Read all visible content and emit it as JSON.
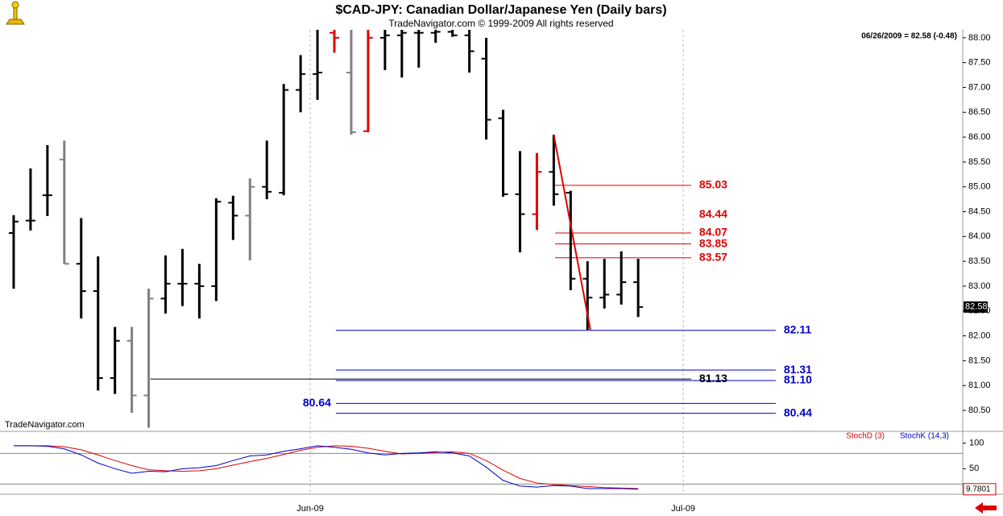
{
  "header": {
    "title": "$CAD-JPY:  Canadian Dollar/Japanese Yen  (Daily bars)",
    "subtitle": "TradeNavigator.com © 1999-2009 All rights reserved",
    "info": "06/26/2009 = 82.58 (-0.48)",
    "watermark": "TradeNavigator.com"
  },
  "chart_data": [
    {
      "type": "ohlc",
      "xlim": [
        -0.81,
        56.23
      ],
      "xticks": [
        {
          "value": 17.57,
          "label": "Jun-09"
        },
        {
          "value": 39.67,
          "label": "Jul-09"
        }
      ],
      "ylim": [
        80.11,
        88.16
      ],
      "yticks": [
        {
          "value": 80.5,
          "label": "80.50"
        },
        {
          "value": 81,
          "label": "81.00"
        },
        {
          "value": 81.5,
          "label": "81.50"
        },
        {
          "value": 82,
          "label": "82.00"
        },
        {
          "value": 82.5,
          "label": "82.50"
        },
        {
          "value": 83,
          "label": "83.00"
        },
        {
          "value": 83.5,
          "label": "83.50"
        },
        {
          "value": 84,
          "label": "84.00"
        },
        {
          "value": 84.5,
          "label": "84.50"
        },
        {
          "value": 85,
          "label": "85.00"
        },
        {
          "value": 85.5,
          "label": "85.50"
        },
        {
          "value": 86,
          "label": "86.00"
        },
        {
          "value": 86.5,
          "label": "86.50"
        },
        {
          "value": 87,
          "label": "87.00"
        },
        {
          "value": 87.5,
          "label": "87.50"
        },
        {
          "value": 88,
          "label": "88.00"
        }
      ],
      "open": [
        84.07,
        84.32,
        84.83,
        85.55,
        83.45,
        82.9,
        81.15,
        81.9,
        80.8,
        82.75,
        83.05,
        83.05,
        83.0,
        84.68,
        84.42,
        85.0,
        84.88,
        86.95,
        87.27,
        88.1,
        87.3,
        86.12,
        88.0,
        88.05,
        88.1,
        88.1,
        88.12,
        88.05,
        87.58,
        86.38,
        84.85,
        84.45,
        85.3,
        84.88,
        83.15,
        82.77,
        82.83,
        83.08
      ],
      "high": [
        84.43,
        85.37,
        85.84,
        85.93,
        84.37,
        83.6,
        82.18,
        82.18,
        82.95,
        83.62,
        83.75,
        83.45,
        84.77,
        84.82,
        85.17,
        85.93,
        87.07,
        87.65,
        88.2,
        88.2,
        88.2,
        88.2,
        88.2,
        88.2,
        88.2,
        88.2,
        88.2,
        88.2,
        88.0,
        86.55,
        85.72,
        85.68,
        86.05,
        84.92,
        83.5,
        83.55,
        83.7,
        83.55
      ],
      "low": [
        82.95,
        84.12,
        84.41,
        83.45,
        82.35,
        80.9,
        80.83,
        80.45,
        80.15,
        82.45,
        82.6,
        82.35,
        82.7,
        83.93,
        83.52,
        84.75,
        84.83,
        86.5,
        86.75,
        87.7,
        86.05,
        86.1,
        87.35,
        87.2,
        87.4,
        87.9,
        88.02,
        87.3,
        85.95,
        84.8,
        83.68,
        84.13,
        84.62,
        82.92,
        82.12,
        82.55,
        82.63,
        82.38
      ],
      "close": [
        84.3,
        84.32,
        84.83,
        83.45,
        82.9,
        81.15,
        81.9,
        80.8,
        82.75,
        83.05,
        83.05,
        83.0,
        84.7,
        84.42,
        85.0,
        84.9,
        86.95,
        87.27,
        87.3,
        88.0,
        86.1,
        88.0,
        88.05,
        88.1,
        88.1,
        88.12,
        88.05,
        87.73,
        86.35,
        84.85,
        84.45,
        85.3,
        84.85,
        83.15,
        82.77,
        82.83,
        83.08,
        82.58
      ],
      "bar_colors": [
        "#000",
        "#000",
        "#000",
        "#808080",
        "#000",
        "#000",
        "#000",
        "#808080",
        "#808080",
        "#000",
        "#000",
        "#000",
        "#000",
        "#000",
        "#808080",
        "#000",
        "#000",
        "#000",
        "#000",
        "#e00000",
        "#808080",
        "#e00000",
        "#000",
        "#000",
        "#000",
        "#000",
        "#000",
        "#000",
        "#000",
        "#000",
        "#000",
        "#e00000",
        "#000",
        "#000",
        "#000",
        "#000",
        "#000",
        "#000"
      ],
      "levels": [
        {
          "value": 85.03,
          "from": 32.08,
          "to": 40.14,
          "side": "right",
          "color": "#e00000"
        },
        {
          "value": 84.44,
          "to": 40.14,
          "side": "right",
          "color": "#e00000"
        },
        {
          "value": 84.07,
          "from": 32.08,
          "to": 40.14,
          "side": "right",
          "color": "#e00000"
        },
        {
          "value": 83.85,
          "from": 32.08,
          "to": 40.14,
          "side": "right",
          "color": "#e00000"
        },
        {
          "value": 83.57,
          "from": 32.08,
          "to": 40.14,
          "side": "right",
          "color": "#e00000"
        },
        {
          "value": 82.11,
          "from": 19.09,
          "to": 45.15,
          "side": "right",
          "color": "#0000cc"
        },
        {
          "value": 81.31,
          "from": 19.09,
          "to": 45.15,
          "side": "right",
          "color": "#0000cc"
        },
        {
          "value": 81.13,
          "from": 8.1,
          "to": 40.14,
          "side": "right",
          "color": "#000000"
        },
        {
          "value": 81.1,
          "label": "81.10",
          "from": 19.09,
          "to": 45.15,
          "side": "right",
          "color": "#0000cc"
        },
        {
          "value": 80.64,
          "from": 19.09,
          "to": 45.15,
          "side": "left",
          "color": "#0000cc"
        },
        {
          "value": 80.44,
          "from": 19.09,
          "to": 45.15,
          "side": "right",
          "color": "#0000cc"
        }
      ],
      "trend_line": {
        "color": "#e00000",
        "x": [
          32,
          34.17
        ],
        "y": [
          86.05,
          82.12
        ]
      }
    },
    {
      "type": "line",
      "ylim": [
        0,
        120
      ],
      "yticks": [
        100,
        50
      ],
      "levels": [
        80,
        20
      ],
      "series": [
        {
          "name": "StochD (3)",
          "color": "#e00000",
          "values": [
            95,
            95,
            95,
            93,
            87,
            77,
            66,
            56,
            48,
            46,
            45,
            46,
            50,
            57,
            64,
            70,
            78,
            86,
            92,
            95,
            94,
            90,
            84,
            79,
            80,
            82,
            83,
            80,
            66,
            47,
            31,
            22,
            19,
            17,
            15,
            13,
            12,
            11
          ]
        },
        {
          "name": "StochK (14,3)",
          "color": "#0000cc",
          "values": [
            95,
            95,
            94,
            89,
            77,
            61,
            50,
            41,
            45,
            44,
            50,
            52,
            56,
            66,
            75,
            77,
            84,
            89,
            95,
            92,
            88,
            81,
            77,
            80,
            81,
            83,
            81,
            75,
            53,
            27,
            16,
            14,
            17,
            16,
            11,
            11,
            11,
            9.7801
          ]
        }
      ]
    }
  ]
}
